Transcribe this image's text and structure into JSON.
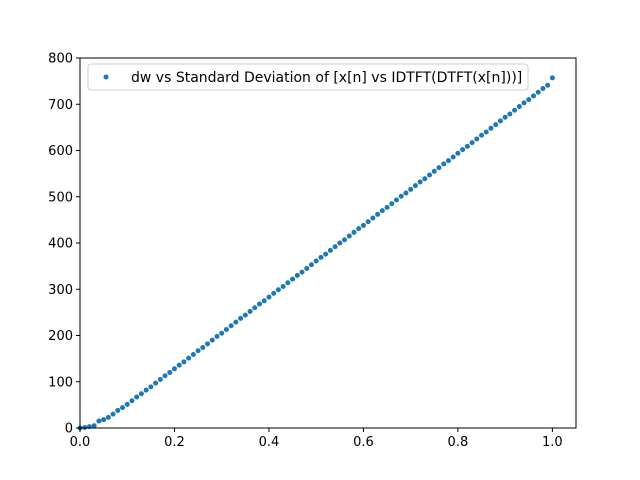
{
  "chart_data": {
    "type": "scatter",
    "title": "",
    "xlabel": "",
    "ylabel": "",
    "xlim": [
      0,
      1.05
    ],
    "ylim": [
      0,
      800
    ],
    "x_ticks": [
      0.0,
      0.2,
      0.4,
      0.6,
      0.8,
      1.0
    ],
    "x_tick_labels": [
      "0.0",
      "0.2",
      "0.4",
      "0.6",
      "0.8",
      "1.0"
    ],
    "y_ticks": [
      0,
      100,
      200,
      300,
      400,
      500,
      600,
      700,
      800
    ],
    "y_tick_labels": [
      "0",
      "100",
      "200",
      "300",
      "400",
      "500",
      "600",
      "700",
      "800"
    ],
    "grid": false,
    "legend": {
      "placement": "upper-left"
    },
    "series": [
      {
        "name": "dw vs Standard Deviation of [x[n] vs IDTFT(DTFT(x[n]))]",
        "color": "#1f77b4",
        "x": [
          0.0,
          0.01,
          0.02,
          0.03,
          0.04,
          0.05,
          0.06,
          0.07,
          0.08,
          0.09,
          0.1,
          0.11,
          0.12,
          0.13,
          0.14,
          0.15,
          0.16,
          0.17,
          0.18,
          0.19,
          0.2,
          0.21,
          0.22,
          0.23,
          0.24,
          0.25,
          0.26,
          0.27,
          0.28,
          0.29,
          0.3,
          0.31,
          0.32,
          0.33,
          0.34,
          0.35,
          0.36,
          0.37,
          0.38,
          0.39,
          0.4,
          0.41,
          0.42,
          0.43,
          0.44,
          0.45,
          0.46,
          0.47,
          0.48,
          0.49,
          0.5,
          0.51,
          0.52,
          0.53,
          0.54,
          0.55,
          0.56,
          0.57,
          0.58,
          0.59,
          0.6,
          0.61,
          0.62,
          0.63,
          0.64,
          0.65,
          0.66,
          0.67,
          0.68,
          0.69,
          0.7,
          0.71,
          0.72,
          0.73,
          0.74,
          0.75,
          0.76,
          0.77,
          0.78,
          0.79,
          0.8,
          0.81,
          0.82,
          0.83,
          0.84,
          0.85,
          0.86,
          0.87,
          0.88,
          0.89,
          0.9,
          0.91,
          0.92,
          0.93,
          0.94,
          0.95,
          0.96,
          0.97,
          0.98,
          0.99,
          1.0
        ],
        "y": [
          0,
          1,
          3,
          5,
          15,
          18,
          23,
          30,
          38,
          44,
          51,
          59,
          67,
          74,
          82,
          89,
          97,
          105,
          113,
          120,
          128,
          136,
          143,
          151,
          159,
          167,
          174,
          182,
          190,
          198,
          205,
          213,
          221,
          229,
          237,
          244,
          252,
          260,
          268,
          275,
          283,
          291,
          299,
          306,
          314,
          322,
          330,
          337,
          345,
          353,
          361,
          369,
          376,
          384,
          392,
          400,
          407,
          415,
          423,
          431,
          438,
          446,
          454,
          462,
          470,
          477,
          485,
          493,
          501,
          508,
          516,
          524,
          532,
          539,
          547,
          555,
          563,
          571,
          578,
          586,
          594,
          602,
          609,
          617,
          625,
          633,
          640,
          648,
          656,
          664,
          672,
          679,
          687,
          695,
          703,
          710,
          718,
          726,
          734,
          741,
          757
        ]
      }
    ]
  }
}
